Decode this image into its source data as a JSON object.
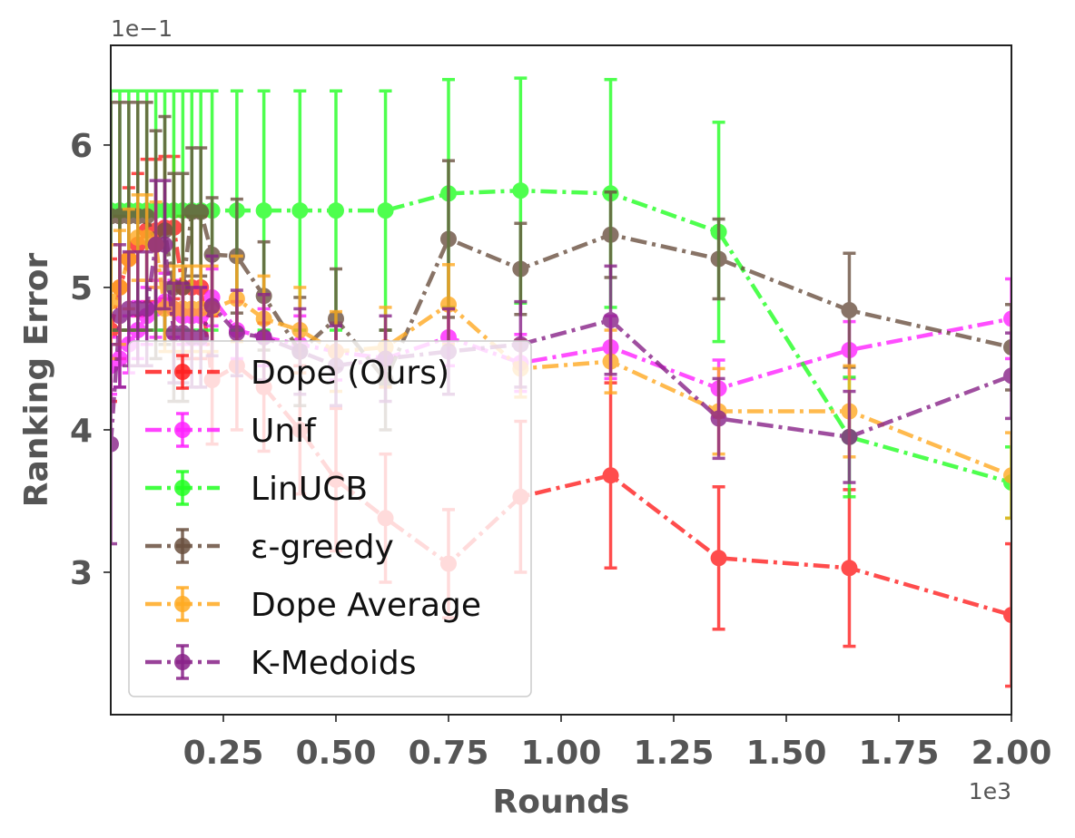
{
  "chart_data": {
    "type": "line",
    "xlabel": "Rounds",
    "ylabel": "Ranking Error",
    "x_offset_label": "1e3",
    "y_offset_label": "1e−1",
    "xlim": [
      0.0,
      2.0
    ],
    "ylim": [
      2.0,
      6.7
    ],
    "x_ticks": [
      0.25,
      0.5,
      0.75,
      1.0,
      1.25,
      1.5,
      1.75,
      2.0
    ],
    "x_tick_labels": [
      "0.25",
      "0.50",
      "0.75",
      "1.00",
      "1.25",
      "1.50",
      "1.75",
      "2.00"
    ],
    "y_ticks": [
      3,
      4,
      5,
      6
    ],
    "y_tick_labels": [
      "3",
      "4",
      "5",
      "6"
    ],
    "grid": false,
    "legend_position": "lower-left",
    "series": [
      {
        "name": "Dope (Ours)",
        "color": "#ff2020",
        "x": [
          0.0,
          0.02,
          0.04,
          0.06,
          0.08,
          0.1,
          0.12,
          0.14,
          0.16,
          0.18,
          0.2,
          0.225,
          0.28,
          0.34,
          0.42,
          0.5,
          0.61,
          0.75,
          0.91,
          1.11,
          1.35,
          1.64,
          2.0
        ],
        "y": [
          4.7,
          5.0,
          5.2,
          5.3,
          5.4,
          5.4,
          5.42,
          5.42,
          5.0,
          5.0,
          5.0,
          4.35,
          4.45,
          4.3,
          4.0,
          3.65,
          3.38,
          3.06,
          3.53,
          3.68,
          3.1,
          3.03,
          2.7
        ],
        "err": [
          0.5,
          0.5,
          0.5,
          0.5,
          0.5,
          0.5,
          0.5,
          0.5,
          0.5,
          0.5,
          0.5,
          0.45,
          0.45,
          0.45,
          0.45,
          0.5,
          0.45,
          0.38,
          0.53,
          0.65,
          0.5,
          0.55,
          0.5
        ]
      },
      {
        "name": "Unif",
        "color": "#ff22ff",
        "x": [
          0.0,
          0.02,
          0.04,
          0.06,
          0.08,
          0.1,
          0.12,
          0.14,
          0.16,
          0.18,
          0.2,
          0.225,
          0.28,
          0.34,
          0.42,
          0.5,
          0.61,
          0.75,
          0.91,
          1.11,
          1.35,
          1.64,
          2.0
        ],
        "y": [
          4.45,
          4.5,
          4.6,
          4.7,
          4.8,
          4.85,
          4.9,
          4.85,
          4.8,
          4.8,
          4.8,
          4.93,
          4.7,
          4.65,
          4.6,
          4.55,
          4.5,
          4.65,
          4.47,
          4.58,
          4.29,
          4.56,
          4.78
        ],
        "err": [
          0.2,
          0.2,
          0.2,
          0.2,
          0.2,
          0.2,
          0.2,
          0.2,
          0.2,
          0.2,
          0.2,
          0.2,
          0.2,
          0.2,
          0.2,
          0.2,
          0.2,
          0.2,
          0.2,
          0.22,
          0.2,
          0.2,
          0.28
        ]
      },
      {
        "name": "LinUCB",
        "color": "#22ff22",
        "x": [
          0.0,
          0.02,
          0.04,
          0.06,
          0.08,
          0.1,
          0.12,
          0.14,
          0.16,
          0.18,
          0.2,
          0.225,
          0.28,
          0.34,
          0.42,
          0.5,
          0.61,
          0.75,
          0.91,
          1.11,
          1.35,
          1.64,
          2.0
        ],
        "y": [
          5.54,
          5.54,
          5.54,
          5.54,
          5.54,
          5.54,
          5.54,
          5.54,
          5.54,
          5.54,
          5.54,
          5.54,
          5.54,
          5.54,
          5.54,
          5.54,
          5.54,
          5.66,
          5.68,
          5.66,
          5.39,
          3.95,
          3.63
        ],
        "err": [
          0.84,
          0.84,
          0.84,
          0.84,
          0.84,
          0.84,
          0.84,
          0.84,
          0.84,
          0.84,
          0.84,
          0.84,
          0.84,
          0.84,
          0.84,
          0.84,
          0.84,
          0.8,
          0.79,
          0.8,
          0.77,
          0.42,
          0.25
        ]
      },
      {
        "name": "ε-greedy",
        "color": "#6b5140",
        "x": [
          0.0,
          0.02,
          0.04,
          0.06,
          0.08,
          0.1,
          0.12,
          0.14,
          0.16,
          0.18,
          0.2,
          0.225,
          0.28,
          0.34,
          0.42,
          0.5,
          0.61,
          0.75,
          0.91,
          1.11,
          1.35,
          1.64,
          2.0
        ],
        "y": [
          5.5,
          5.5,
          5.5,
          5.5,
          5.5,
          5.3,
          5.4,
          5.0,
          5.0,
          5.53,
          5.53,
          5.23,
          5.22,
          4.94,
          4.55,
          4.78,
          4.35,
          5.34,
          5.13,
          5.37,
          5.2,
          4.84,
          4.58
        ],
        "err": [
          0.8,
          0.8,
          0.8,
          0.8,
          0.8,
          0.8,
          0.8,
          0.8,
          0.8,
          0.45,
          0.45,
          0.4,
          0.4,
          0.38,
          0.38,
          0.35,
          0.35,
          0.55,
          0.32,
          0.3,
          0.28,
          0.4,
          0.3
        ]
      },
      {
        "name": "Dope Average",
        "color": "#ffaa22",
        "x": [
          0.0,
          0.02,
          0.04,
          0.06,
          0.08,
          0.1,
          0.12,
          0.14,
          0.16,
          0.18,
          0.2,
          0.225,
          0.28,
          0.34,
          0.42,
          0.5,
          0.61,
          0.75,
          0.91,
          1.11,
          1.35,
          1.64,
          2.0
        ],
        "y": [
          4.9,
          5.0,
          5.2,
          5.35,
          5.35,
          5.3,
          4.85,
          4.85,
          4.85,
          4.85,
          4.85,
          4.85,
          4.92,
          4.78,
          4.7,
          4.55,
          4.58,
          4.88,
          4.43,
          4.48,
          4.13,
          4.13,
          3.68
        ],
        "err": [
          0.4,
          0.4,
          0.35,
          0.3,
          0.3,
          0.3,
          0.3,
          0.3,
          0.3,
          0.3,
          0.3,
          0.3,
          0.3,
          0.3,
          0.3,
          0.28,
          0.28,
          0.28,
          0.2,
          0.22,
          0.3,
          0.32,
          0.3
        ]
      },
      {
        "name": "K-Medoids",
        "color": "#882288",
        "x": [
          0.0,
          0.02,
          0.04,
          0.06,
          0.08,
          0.1,
          0.12,
          0.14,
          0.16,
          0.18,
          0.2,
          0.225,
          0.28,
          0.34,
          0.42,
          0.5,
          0.61,
          0.75,
          0.91,
          1.11,
          1.35,
          1.64,
          2.0
        ],
        "y": [
          3.9,
          4.8,
          4.85,
          4.85,
          4.85,
          5.3,
          5.3,
          4.68,
          4.68,
          4.65,
          4.65,
          4.87,
          4.68,
          4.65,
          4.55,
          4.45,
          4.5,
          4.55,
          4.6,
          4.77,
          4.08,
          3.95,
          4.38
        ],
        "err": [
          0.7,
          0.5,
          0.4,
          0.4,
          0.4,
          0.45,
          0.45,
          0.35,
          0.35,
          0.35,
          0.35,
          0.35,
          0.3,
          0.3,
          0.3,
          0.28,
          0.3,
          0.3,
          0.3,
          0.38,
          0.28,
          0.32,
          0.3
        ]
      }
    ]
  }
}
